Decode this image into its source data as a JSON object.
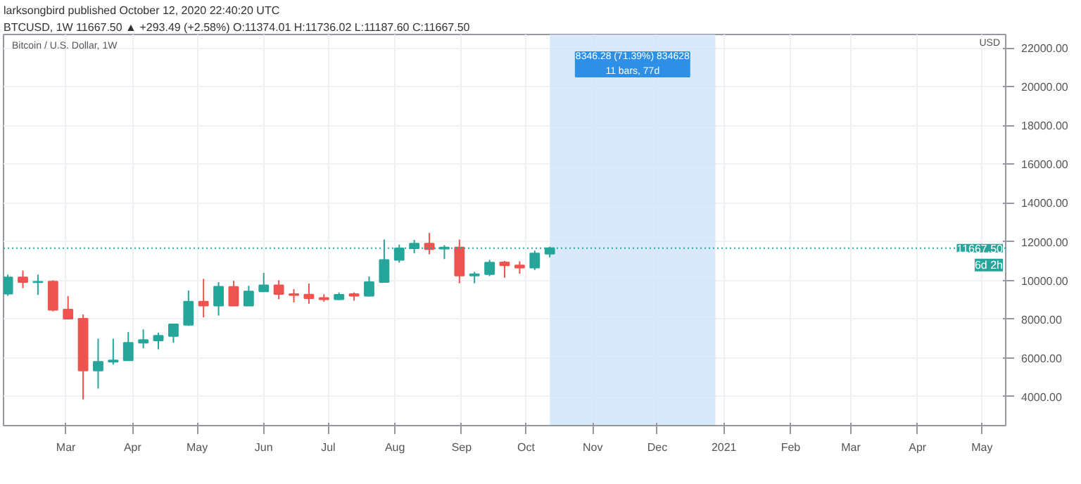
{
  "chart_data": {
    "type": "candlestick",
    "title": "larksongbird published October 12, 2020 22:40:20 UTC",
    "subtitle": "BTCUSD, 1W 11667.50 ▲ +293.49 (+2.58%) O:11374.01 H:11736.02 L:11187.60 C:11667.50",
    "annotations": [
      "Bitcoin / U.S. Dollar, 1W",
      "6d 2h"
    ],
    "ylabel": "USD",
    "x": [
      "2020-02-03",
      "2020-02-10",
      "2020-02-17",
      "2020-02-24",
      "2020-03-02",
      "2020-03-09",
      "2020-03-16",
      "2020-03-23",
      "2020-03-30",
      "2020-04-06",
      "2020-04-13",
      "2020-04-20",
      "2020-04-27",
      "2020-05-04",
      "2020-05-11",
      "2020-05-18",
      "2020-05-25",
      "2020-06-01",
      "2020-06-08",
      "2020-06-15",
      "2020-06-22",
      "2020-06-29",
      "2020-07-06",
      "2020-07-13",
      "2020-07-20",
      "2020-07-27",
      "2020-08-03",
      "2020-08-10",
      "2020-08-17",
      "2020-08-24",
      "2020-08-31",
      "2020-09-07",
      "2020-09-14",
      "2020-09-21",
      "2020-09-28",
      "2020-10-05",
      "2020-10-12"
    ],
    "ohlc": [
      [
        9313,
        10300,
        9200,
        10153
      ],
      [
        10153,
        10510,
        9600,
        9913
      ],
      [
        9900,
        10300,
        9250,
        9930
      ],
      [
        9937,
        10010,
        8400,
        8473
      ],
      [
        8497,
        9190,
        7980,
        8021
      ],
      [
        8021,
        8240,
        3856,
        5341
      ],
      [
        5341,
        6990,
        4410,
        5795
      ],
      [
        5800,
        6990,
        5650,
        5867
      ],
      [
        5870,
        7330,
        5860,
        6776
      ],
      [
        6776,
        7470,
        6490,
        6920
      ],
      [
        6900,
        7300,
        6440,
        7138
      ],
      [
        7120,
        7740,
        6780,
        7734
      ],
      [
        7700,
        9480,
        7650,
        8906
      ],
      [
        8906,
        10080,
        8090,
        8690
      ],
      [
        8690,
        9910,
        8180,
        9672
      ],
      [
        9670,
        9980,
        8690,
        8690
      ],
      [
        8690,
        9720,
        8690,
        9433
      ],
      [
        9433,
        10390,
        9400,
        9744
      ],
      [
        9744,
        10006,
        9030,
        9292
      ],
      [
        9292,
        9550,
        8860,
        9240
      ],
      [
        9270,
        9840,
        8790,
        9074
      ],
      [
        9090,
        9290,
        8900,
        9020
      ],
      [
        9020,
        9380,
        8980,
        9260
      ],
      [
        9290,
        9380,
        8950,
        9200
      ],
      [
        9200,
        10200,
        9160,
        9911
      ],
      [
        9911,
        12110,
        9900,
        11060
      ],
      [
        11060,
        11850,
        10920,
        11659
      ],
      [
        11659,
        12090,
        11400,
        11898
      ],
      [
        11898,
        12450,
        11350,
        11610
      ],
      [
        11640,
        11820,
        11100,
        11700
      ],
      [
        11700,
        12110,
        9850,
        10247
      ],
      [
        10247,
        10440,
        9850,
        10320
      ],
      [
        10320,
        11060,
        10220,
        10917
      ],
      [
        10930,
        11000,
        10140,
        10773
      ],
      [
        10773,
        10990,
        10350,
        10654
      ],
      [
        10654,
        11540,
        10540,
        11395
      ],
      [
        11374.01,
        11736.02,
        11187.6,
        11667.5
      ]
    ],
    "colors": [
      "#26a69a",
      "#ef5350",
      "#26a69a",
      "#ef5350",
      "#ef5350",
      "#ef5350",
      "#26a69a",
      "#26a69a",
      "#26a69a",
      "#26a69a",
      "#26a69a",
      "#26a69a",
      "#26a69a",
      "#ef5350",
      "#26a69a",
      "#ef5350",
      "#26a69a",
      "#26a69a",
      "#ef5350",
      "#ef5350",
      "#ef5350",
      "#ef5350",
      "#26a69a",
      "#ef5350",
      "#26a69a",
      "#26a69a",
      "#26a69a",
      "#26a69a",
      "#ef5350",
      "#26a69a",
      "#ef5350",
      "#26a69a",
      "#26a69a",
      "#ef5350",
      "#ef5350",
      "#26a69a",
      "#26a69a"
    ],
    "xlim": [
      "2020-02-01",
      "2021-05-12"
    ],
    "xticks": [
      {
        "value": "2020-03-01",
        "label": "Mar"
      },
      {
        "value": "2020-04-01",
        "label": "Apr"
      },
      {
        "value": "2020-05-01",
        "label": "May"
      },
      {
        "value": "2020-06-01",
        "label": "Jun"
      },
      {
        "value": "2020-07-01",
        "label": "Jul"
      },
      {
        "value": "2020-08-01",
        "label": "Aug"
      },
      {
        "value": "2020-09-01",
        "label": "Sep"
      },
      {
        "value": "2020-10-01",
        "label": "Oct"
      },
      {
        "value": "2020-11-01",
        "label": "Nov"
      },
      {
        "value": "2020-12-01",
        "label": "Dec"
      },
      {
        "value": "2021-01-01",
        "label": "2021"
      },
      {
        "value": "2021-02-01",
        "label": "Feb"
      },
      {
        "value": "2021-03-01",
        "label": "Mar"
      },
      {
        "value": "2021-04-01",
        "label": "Apr"
      },
      {
        "value": "2021-05-01",
        "label": "May"
      }
    ],
    "ylim": [
      2500,
      22700
    ],
    "yticks": [
      {
        "value": 4000,
        "label": "4000.00"
      },
      {
        "value": 6000,
        "label": "6000.00"
      },
      {
        "value": 8000,
        "label": "8000.00"
      },
      {
        "value": 10000,
        "label": "10000.00"
      },
      {
        "value": 12000,
        "label": "12000.00"
      },
      {
        "value": 14000,
        "label": "14000.00"
      },
      {
        "value": 16000,
        "label": "16000.00"
      },
      {
        "value": 18000,
        "label": "18000.00"
      },
      {
        "value": 20000,
        "label": "20000.00"
      },
      {
        "value": 22000,
        "label": "22000.00"
      }
    ],
    "grid": true,
    "ref_lines": [
      {
        "axis": "y",
        "value": 11667.5,
        "label": "11667.50",
        "color": "#26a69a",
        "line_style": "dotted"
      }
    ],
    "bands": [
      {
        "axis": "x",
        "from": "2020-10-12",
        "to": "2020-12-28",
        "label": "8346.28 (71.39%) 834628\n11 bars, 77d",
        "color": "#cfe3f8"
      }
    ]
  }
}
